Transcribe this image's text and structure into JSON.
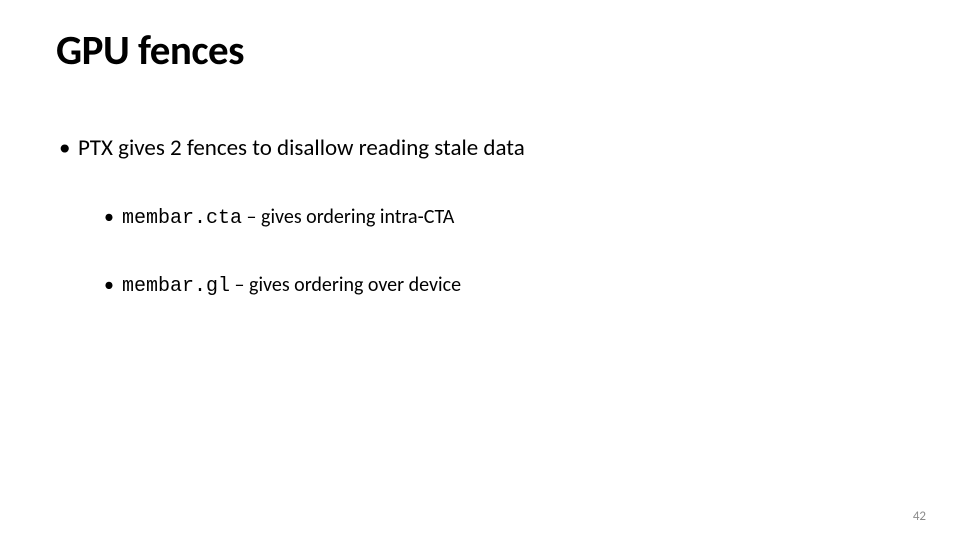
{
  "background_color": "#ffffff",
  "text_color": "#000000",
  "page_number_color": "#8a8a8a",
  "title": "GPU fences",
  "title_fontsize": 41,
  "body_fontsize_l1": 23,
  "body_fontsize_l2": 20,
  "code_font": "Courier New",
  "body_font": "Calibri",
  "bullet_l1": {
    "text": "PTX gives 2 fences to disallow reading stale data"
  },
  "bullet_l2a": {
    "code": "membar.cta",
    "text": " – gives ordering intra-CTA"
  },
  "bullet_l2b": {
    "code": "membar.gl",
    "text": " – gives ordering over device"
  },
  "page_number": "42"
}
